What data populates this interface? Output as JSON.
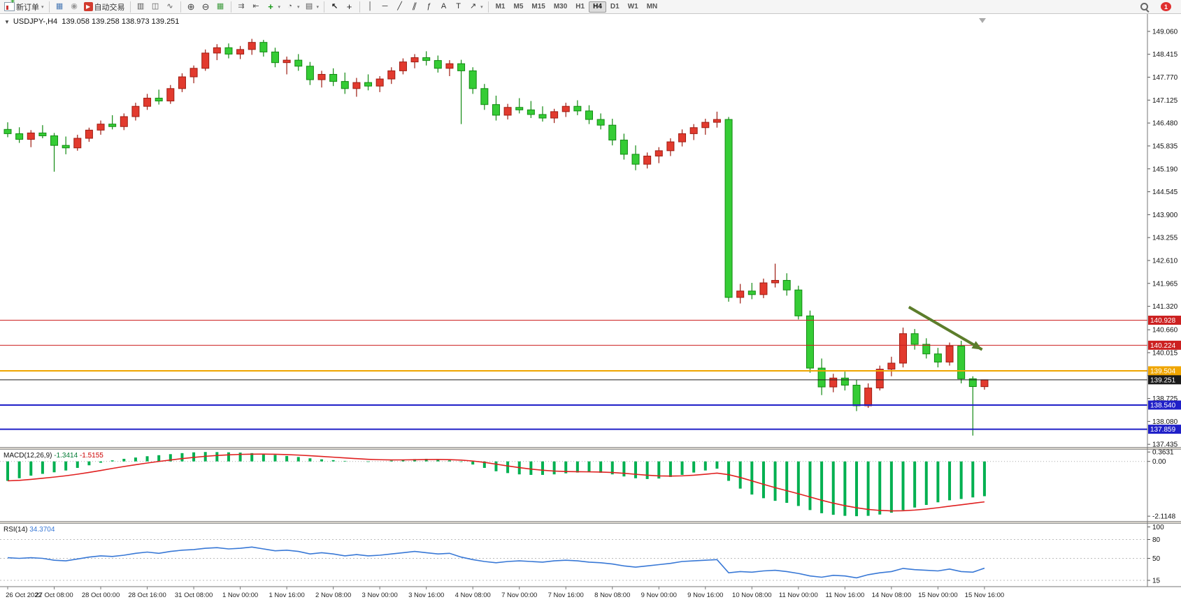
{
  "toolbar": {
    "groups": [
      [
        {
          "name": "new-order",
          "label": "新订单",
          "dropdown": true
        }
      ],
      [
        {
          "name": "chart-windows"
        },
        {
          "name": "signals"
        },
        {
          "name": "auto-trading",
          "label": "自动交易"
        }
      ],
      [
        {
          "name": "bar-chart"
        },
        {
          "name": "candle-chart"
        },
        {
          "name": "line-chart"
        }
      ],
      [
        {
          "name": "zoom-in"
        },
        {
          "name": "zoom-out"
        },
        {
          "name": "tile-windows"
        }
      ],
      [
        {
          "name": "auto-scroll"
        },
        {
          "name": "chart-shift"
        },
        {
          "name": "indicators",
          "dropdown": true
        },
        {
          "name": "periods",
          "dropdown": true
        },
        {
          "name": "templates",
          "dropdown": true
        }
      ],
      [
        {
          "name": "cursor"
        },
        {
          "name": "crosshair"
        }
      ],
      [
        {
          "name": "vertical-line"
        },
        {
          "name": "horizontal-line"
        },
        {
          "name": "trendline"
        },
        {
          "name": "channel"
        },
        {
          "name": "fibonacci"
        },
        {
          "name": "text"
        },
        {
          "name": "text-label"
        },
        {
          "name": "arrow-tools",
          "dropdown": true
        }
      ],
      [
        {
          "name": "tf-M1",
          "label": "M1"
        },
        {
          "name": "tf-M5",
          "label": "M5"
        },
        {
          "name": "tf-M15",
          "label": "M15"
        },
        {
          "name": "tf-M30",
          "label": "M30"
        },
        {
          "name": "tf-H1",
          "label": "H1"
        },
        {
          "name": "tf-H4",
          "label": "H4",
          "active": true
        },
        {
          "name": "tf-D1",
          "label": "D1"
        },
        {
          "name": "tf-W1",
          "label": "W1"
        },
        {
          "name": "tf-MN",
          "label": "MN"
        }
      ]
    ],
    "right": [
      {
        "name": "symbol-search"
      },
      {
        "name": "notifications",
        "badge": "1"
      }
    ]
  },
  "chart_data": [
    {
      "type": "candlestick",
      "symbol": "USDJPY-",
      "timeframe": "H4",
      "title": "USDJPY-,H4  139.058 139.258 138.973 139.251",
      "up_color": "#e23a2e",
      "down_color": "#35cc35",
      "up_stroke": "#9e1c12",
      "down_stroke": "#128a12",
      "y_range": [
        137.36,
        149.55
      ],
      "y_ticks": [
        "149.060",
        "148.415",
        "147.770",
        "147.125",
        "146.480",
        "145.835",
        "145.190",
        "144.545",
        "143.900",
        "143.255",
        "142.610",
        "141.965",
        "141.320",
        "140.660",
        "140.015",
        "139.370",
        "138.725",
        "138.080",
        "137.435"
      ],
      "x_label_step": 4,
      "x_labels": [
        "26 Oct 2022",
        "27 Oct 08:00",
        "28 Oct 00:00",
        "28 Oct 16:00",
        "31 Oct 08:00",
        "1 Nov 00:00",
        "1 Nov 16:00",
        "2 Nov 08:00",
        "3 Nov 00:00",
        "3 Nov 16:00",
        "4 Nov 08:00",
        "7 Nov 00:00",
        "7 Nov 16:00",
        "8 Nov 08:00",
        "9 Nov 00:00",
        "9 Nov 16:00",
        "10 Nov 08:00",
        "11 Nov 00:00",
        "11 Nov 16:00",
        "14 Nov 08:00",
        "15 Nov 00:00",
        "15 Nov 16:00"
      ],
      "ohlc": [
        [
          146.3,
          146.5,
          146.08,
          146.18
        ],
        [
          146.18,
          146.36,
          145.92,
          146.02
        ],
        [
          146.02,
          146.28,
          145.8,
          146.2
        ],
        [
          146.2,
          146.42,
          146.05,
          146.12
        ],
        [
          146.12,
          146.2,
          145.11,
          145.85
        ],
        [
          145.85,
          146.1,
          145.6,
          145.78
        ],
        [
          145.78,
          146.15,
          145.7,
          146.05
        ],
        [
          146.05,
          146.35,
          145.95,
          146.28
        ],
        [
          146.28,
          146.55,
          146.15,
          146.45
        ],
        [
          146.45,
          146.7,
          146.3,
          146.38
        ],
        [
          146.38,
          146.75,
          146.28,
          146.66
        ],
        [
          146.66,
          147.05,
          146.55,
          146.95
        ],
        [
          146.95,
          147.3,
          146.85,
          147.18
        ],
        [
          147.18,
          147.42,
          147.0,
          147.1
        ],
        [
          147.1,
          147.55,
          147.02,
          147.45
        ],
        [
          147.45,
          147.88,
          147.35,
          147.78
        ],
        [
          147.78,
          148.1,
          147.6,
          148.02
        ],
        [
          148.02,
          148.55,
          147.95,
          148.45
        ],
        [
          148.45,
          148.7,
          148.25,
          148.6
        ],
        [
          148.6,
          148.72,
          148.3,
          148.42
        ],
        [
          148.42,
          148.65,
          148.28,
          148.55
        ],
        [
          148.55,
          148.85,
          148.4,
          148.75
        ],
        [
          148.75,
          148.82,
          148.35,
          148.48
        ],
        [
          148.48,
          148.6,
          148.05,
          148.18
        ],
        [
          148.18,
          148.35,
          147.85,
          148.25
        ],
        [
          148.25,
          148.42,
          147.95,
          148.08
        ],
        [
          148.08,
          148.2,
          147.55,
          147.7
        ],
        [
          147.7,
          147.95,
          147.48,
          147.85
        ],
        [
          147.85,
          148.02,
          147.52,
          147.65
        ],
        [
          147.65,
          147.9,
          147.3,
          147.45
        ],
        [
          147.45,
          147.75,
          147.22,
          147.62
        ],
        [
          147.62,
          147.85,
          147.4,
          147.52
        ],
        [
          147.52,
          147.8,
          147.35,
          147.72
        ],
        [
          147.72,
          148.05,
          147.58,
          147.95
        ],
        [
          147.95,
          148.3,
          147.85,
          148.2
        ],
        [
          148.2,
          148.42,
          148.02,
          148.32
        ],
        [
          148.32,
          148.5,
          148.1,
          148.24
        ],
        [
          148.24,
          148.38,
          147.9,
          148.02
        ],
        [
          148.02,
          148.25,
          147.8,
          148.15
        ],
        [
          148.15,
          148.26,
          146.45,
          147.95
        ],
        [
          147.95,
          148.05,
          147.3,
          147.45
        ],
        [
          147.45,
          147.58,
          146.85,
          147.0
        ],
        [
          147.0,
          147.25,
          146.55,
          146.7
        ],
        [
          146.7,
          147.02,
          146.58,
          146.92
        ],
        [
          146.92,
          147.18,
          146.75,
          146.85
        ],
        [
          146.85,
          147.1,
          146.62,
          146.72
        ],
        [
          146.72,
          146.95,
          146.52,
          146.62
        ],
        [
          146.62,
          146.88,
          146.48,
          146.8
        ],
        [
          146.8,
          147.05,
          146.65,
          146.95
        ],
        [
          146.95,
          147.12,
          146.7,
          146.82
        ],
        [
          146.82,
          146.98,
          146.45,
          146.58
        ],
        [
          146.58,
          146.75,
          146.3,
          146.42
        ],
        [
          146.42,
          146.6,
          145.85,
          146.0
        ],
        [
          146.0,
          146.18,
          145.45,
          145.6
        ],
        [
          145.6,
          145.85,
          145.15,
          145.32
        ],
        [
          145.32,
          145.65,
          145.2,
          145.55
        ],
        [
          145.55,
          145.8,
          145.35,
          145.7
        ],
        [
          145.7,
          146.05,
          145.55,
          145.95
        ],
        [
          145.95,
          146.3,
          145.82,
          146.18
        ],
        [
          146.18,
          146.45,
          146.0,
          146.35
        ],
        [
          146.35,
          146.6,
          146.15,
          146.5
        ],
        [
          146.5,
          146.8,
          146.35,
          146.58
        ],
        [
          146.58,
          146.65,
          141.45,
          141.57
        ],
        [
          141.57,
          141.95,
          141.4,
          141.75
        ],
        [
          141.75,
          141.98,
          141.52,
          141.65
        ],
        [
          141.65,
          142.1,
          141.55,
          141.98
        ],
        [
          141.98,
          142.52,
          141.85,
          142.05
        ],
        [
          142.05,
          142.25,
          141.62,
          141.78
        ],
        [
          141.78,
          141.9,
          140.95,
          141.05
        ],
        [
          141.05,
          141.2,
          139.45,
          139.58
        ],
        [
          139.58,
          139.85,
          138.82,
          139.05
        ],
        [
          139.05,
          139.42,
          138.9,
          139.3
        ],
        [
          139.3,
          139.48,
          138.95,
          139.1
        ],
        [
          139.1,
          139.25,
          138.37,
          138.52
        ],
        [
          138.52,
          139.15,
          138.46,
          139.02
        ],
        [
          139.02,
          139.65,
          138.95,
          139.55
        ],
        [
          139.55,
          139.9,
          139.35,
          139.72
        ],
        [
          139.72,
          140.72,
          139.6,
          140.55
        ],
        [
          140.55,
          140.68,
          140.1,
          140.25
        ],
        [
          140.25,
          140.42,
          139.85,
          139.98
        ],
        [
          139.98,
          140.15,
          139.6,
          139.75
        ],
        [
          139.75,
          140.3,
          139.65,
          140.2
        ],
        [
          140.2,
          140.35,
          139.15,
          139.28
        ],
        [
          139.28,
          139.35,
          137.68,
          139.06
        ],
        [
          139.058,
          139.258,
          138.973,
          139.251
        ]
      ],
      "hlines": [
        {
          "price": 140.928,
          "color": "#cc2020",
          "label": "140.928",
          "width": 1
        },
        {
          "price": 140.224,
          "color": "#cc2020",
          "label": "140.224",
          "width": 1
        },
        {
          "price": 139.504,
          "color": "#efa500",
          "label": "139.504",
          "width": 2
        },
        {
          "price": 139.251,
          "color": "#1a1a1a",
          "label": "139.251",
          "width": 1
        },
        {
          "price": 138.54,
          "color": "#2020c8",
          "label": "138.540",
          "width": 2
        },
        {
          "price": 137.859,
          "color": "#2020c8",
          "label": "137.859",
          "width": 2
        }
      ],
      "annotations": [
        {
          "type": "arrow",
          "color": "#5c7d2b",
          "from_index": 77.5,
          "from_price": 141.3,
          "to_index": 83.8,
          "to_price": 140.1
        }
      ]
    },
    {
      "type": "bar",
      "label": "MACD(12,26,9)",
      "value_main": "-1.3414",
      "value_signal": "-1.5155",
      "bar_color": "#00b050",
      "signal_color": "#e02020",
      "y_range": [
        -2.3,
        0.45
      ],
      "y_ticks": [
        "0.3631",
        "0.00",
        "-2.1148"
      ],
      "histogram": [
        -0.75,
        -0.65,
        -0.55,
        -0.48,
        -0.42,
        -0.35,
        -0.25,
        -0.15,
        -0.05,
        0.04,
        0.1,
        0.15,
        0.2,
        0.24,
        0.28,
        0.32,
        0.35,
        0.3631,
        0.36,
        0.35,
        0.34,
        0.32,
        0.29,
        0.25,
        0.21,
        0.17,
        0.12,
        0.08,
        0.05,
        0.02,
        0.0,
        -0.02,
        0.0,
        0.03,
        0.06,
        0.09,
        0.1,
        0.08,
        0.04,
        -0.02,
        -0.12,
        -0.25,
        -0.38,
        -0.45,
        -0.5,
        -0.52,
        -0.52,
        -0.5,
        -0.46,
        -0.43,
        -0.42,
        -0.44,
        -0.5,
        -0.58,
        -0.65,
        -0.68,
        -0.66,
        -0.6,
        -0.52,
        -0.43,
        -0.35,
        -0.28,
        -0.75,
        -1.05,
        -1.28,
        -1.42,
        -1.52,
        -1.6,
        -1.72,
        -1.88,
        -2.0,
        -2.06,
        -2.1,
        -2.1148,
        -2.1,
        -2.05,
        -1.98,
        -1.88,
        -1.78,
        -1.68,
        -1.58,
        -1.5,
        -1.45,
        -1.39,
        -1.3414
      ]
    },
    {
      "type": "line",
      "label": "RSI(14)",
      "value": "34.3704",
      "line_color": "#3878d6",
      "y_range": [
        5,
        105
      ],
      "levels": [
        80,
        50,
        15
      ],
      "y_ticks": [
        "100",
        "80",
        "50",
        "15"
      ],
      "values": [
        51,
        50,
        51,
        50,
        47,
        46,
        49,
        52,
        54,
        53,
        55,
        58,
        60,
        58,
        61,
        63,
        64,
        66,
        67,
        65,
        66,
        68,
        65,
        62,
        63,
        61,
        57,
        59,
        57,
        54,
        56,
        54,
        55,
        57,
        59,
        61,
        59,
        57,
        58,
        52,
        48,
        45,
        43,
        45,
        46,
        45,
        44,
        46,
        47,
        46,
        44,
        43,
        41,
        38,
        36,
        38,
        40,
        42,
        45,
        46,
        47,
        48,
        27,
        29,
        28,
        30,
        31,
        29,
        26,
        22,
        20,
        23,
        22,
        19,
        24,
        27,
        29,
        34,
        32,
        31,
        30,
        33,
        29,
        28,
        34.3704
      ]
    }
  ]
}
